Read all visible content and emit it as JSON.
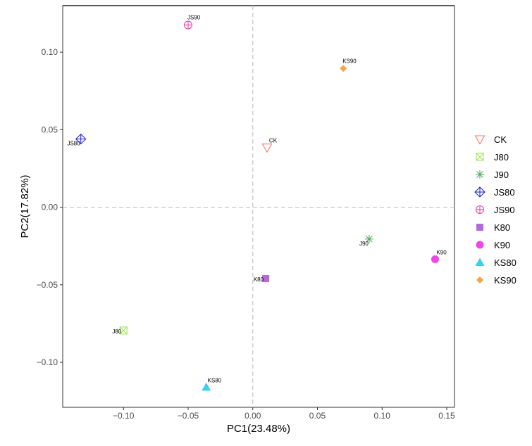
{
  "chart_data": {
    "type": "scatter",
    "xlabel": "PC1(23.48%)",
    "ylabel": "PC2(17.82%)",
    "xlim": [
      -0.147,
      0.156
    ],
    "ylim": [
      -0.129,
      0.13
    ],
    "x_ticks": [
      {
        "value": -0.1,
        "label": "−0.10"
      },
      {
        "value": -0.05,
        "label": "−0.05"
      },
      {
        "value": 0.0,
        "label": "0.00"
      },
      {
        "value": 0.05,
        "label": "0.05"
      },
      {
        "value": 0.1,
        "label": "0.10"
      },
      {
        "value": 0.15,
        "label": "0.15"
      }
    ],
    "y_ticks": [
      {
        "value": 0.1,
        "label": "0.10"
      },
      {
        "value": 0.05,
        "label": "0.05"
      },
      {
        "value": 0.0,
        "label": "0.00"
      },
      {
        "value": -0.05,
        "label": "−0.05"
      },
      {
        "value": -0.1,
        "label": "−0.10"
      }
    ],
    "reference_lines": {
      "x": 0,
      "y": 0,
      "style": "dashed"
    },
    "grid": false,
    "legend_position": "right",
    "points": [
      {
        "name": "CK",
        "x": 0.011,
        "y": 0.0385,
        "label_side": "right"
      },
      {
        "name": "J80",
        "x": -0.1,
        "y": -0.0795,
        "label_side": "left"
      },
      {
        "name": "J90",
        "x": 0.09,
        "y": -0.0205,
        "label_side": "below-left"
      },
      {
        "name": "JS80",
        "x": -0.133,
        "y": 0.044,
        "label_side": "below-left"
      },
      {
        "name": "JS90",
        "x": -0.05,
        "y": 0.1175,
        "label_side": "above"
      },
      {
        "name": "K80",
        "x": 0.01,
        "y": -0.046,
        "label_side": "left"
      },
      {
        "name": "K90",
        "x": 0.141,
        "y": -0.0335,
        "label_side": "above-right"
      },
      {
        "name": "KS80",
        "x": -0.036,
        "y": -0.116,
        "label_side": "above-right"
      },
      {
        "name": "KS90",
        "x": 0.07,
        "y": 0.0895,
        "label_side": "above"
      }
    ],
    "series": [
      {
        "name": "CK",
        "shape": "triangle-down-open",
        "color": "#f8766d"
      },
      {
        "name": "J80",
        "shape": "square-x-open",
        "color": "#a3e35a"
      },
      {
        "name": "J90",
        "shape": "asterisk",
        "color": "#4dab5e"
      },
      {
        "name": "JS80",
        "shape": "diamond-plus-open",
        "color": "#2d2dc8"
      },
      {
        "name": "JS90",
        "shape": "circle-plus-open",
        "color": "#e04ba6"
      },
      {
        "name": "K80",
        "shape": "square-filled",
        "color": "#b36bd9"
      },
      {
        "name": "K90",
        "shape": "circle-filled",
        "color": "#f046e6"
      },
      {
        "name": "KS80",
        "shape": "triangle-up-filled",
        "color": "#3ad0f0"
      },
      {
        "name": "KS90",
        "shape": "diamond-filled",
        "color": "#f7a542"
      }
    ]
  }
}
